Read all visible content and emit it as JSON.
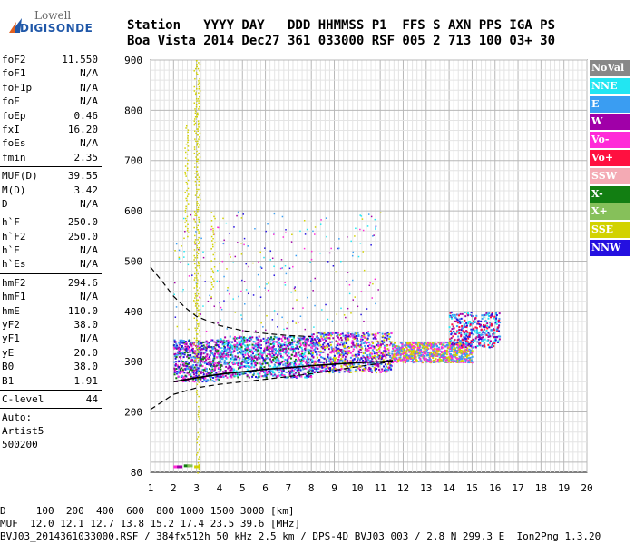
{
  "logo": {
    "line1": "Lowell",
    "line2": "DIGISONDE"
  },
  "header": {
    "line1": "Station   YYYY DAY   DDD HHMMSS P1  FFS S AXN PPS IGA PS",
    "line2": "Boa Vista 2014 Dec27 361 033000 RSF 005 2 713 100 03+ 30"
  },
  "params": {
    "g1": [
      {
        "k": "foF2",
        "v": "11.550"
      },
      {
        "k": "foF1",
        "v": "N/A"
      },
      {
        "k": "foF1p",
        "v": "N/A"
      },
      {
        "k": "foE",
        "v": "N/A"
      },
      {
        "k": "foEp",
        "v": "0.46"
      },
      {
        "k": "fxI",
        "v": "16.20"
      },
      {
        "k": "foEs",
        "v": "N/A"
      },
      {
        "k": "fmin",
        "v": "2.35"
      }
    ],
    "g2": [
      {
        "k": "MUF(D)",
        "v": "39.55"
      },
      {
        "k": "M(D)",
        "v": "3.42"
      },
      {
        "k": "D",
        "v": "N/A"
      }
    ],
    "g3": [
      {
        "k": "h`F",
        "v": "250.0"
      },
      {
        "k": "h`F2",
        "v": "250.0"
      },
      {
        "k": "h`E",
        "v": "N/A"
      },
      {
        "k": "h`Es",
        "v": "N/A"
      }
    ],
    "g4": [
      {
        "k": "hmF2",
        "v": "294.6"
      },
      {
        "k": "hmF1",
        "v": "N/A"
      },
      {
        "k": "hmE",
        "v": "110.0"
      },
      {
        "k": "yF2",
        "v": "38.0"
      },
      {
        "k": "yF1",
        "v": "N/A"
      },
      {
        "k": "yE",
        "v": "20.0"
      },
      {
        "k": "B0",
        "v": "38.0"
      },
      {
        "k": "B1",
        "v": "1.91"
      }
    ],
    "g5": [
      {
        "k": "C-level",
        "v": "44"
      }
    ],
    "auto": {
      "l1": "Auto:",
      "l2": "Artist5",
      "l3": "500200"
    }
  },
  "legend": [
    {
      "label": "NoVal",
      "color": "#888888"
    },
    {
      "label": "NNE",
      "color": "#22e6f2"
    },
    {
      "label": "E",
      "color": "#3a9df2"
    },
    {
      "label": "W",
      "color": "#a000a8"
    },
    {
      "label": "Vo-",
      "color": "#ff2ad8"
    },
    {
      "label": "Vo+",
      "color": "#ff1040"
    },
    {
      "label": "SSW",
      "color": "#f4aab4"
    },
    {
      "label": "X-",
      "color": "#127e12"
    },
    {
      "label": "X+",
      "color": "#86c05a"
    },
    {
      "label": "SSE",
      "color": "#d2d200"
    },
    {
      "label": "NNW",
      "color": "#2410e0"
    }
  ],
  "footer": {
    "line1": "D     100  200  400  600  800 1000 1500 3000 [km]",
    "line2": "MUF  12.0 12.1 12.7 13.8 15.2 17.4 23.5 39.6 [MHz]",
    "line3": "BVJ03_2014361033000.RSF / 384fx512h 50 kHz 2.5 km / DPS-4D BVJ03 003 / 2.8 N 299.3 E  Ion2Png 1.3.20"
  },
  "chart_data": {
    "type": "scatter",
    "title": "",
    "xlabel": "",
    "ylabel": "",
    "xlim": [
      1,
      20
    ],
    "ylim": [
      80,
      900
    ],
    "xticks": [
      1,
      2,
      3,
      4,
      5,
      6,
      7,
      8,
      9,
      10,
      11,
      12,
      13,
      14,
      15,
      16,
      17,
      18,
      19,
      20
    ],
    "yticks": [
      80,
      200,
      300,
      400,
      500,
      600,
      700,
      800,
      900
    ],
    "grid": true,
    "legend_position": "right",
    "series": [
      {
        "name": "NoVal",
        "color": "#888888"
      },
      {
        "name": "NNE",
        "color": "#22e6f2"
      },
      {
        "name": "E",
        "color": "#3a9df2"
      },
      {
        "name": "W",
        "color": "#a000a8"
      },
      {
        "name": "Vo-",
        "color": "#ff2ad8"
      },
      {
        "name": "Vo+",
        "color": "#ff1040"
      },
      {
        "name": "SSW",
        "color": "#f4aab4"
      },
      {
        "name": "X-",
        "color": "#127e12"
      },
      {
        "name": "X+",
        "color": "#86c05a"
      },
      {
        "name": "SSE",
        "color": "#d2d200"
      },
      {
        "name": "NNW",
        "color": "#2410e0"
      }
    ],
    "trace_bands": [
      {
        "from_f": 2.0,
        "to_f": 4.0,
        "h_low": 262,
        "h_high": 345,
        "series": [
          "Vo-",
          "W",
          "NNW",
          "E",
          "X-"
        ],
        "density": 1.0
      },
      {
        "from_f": 4.0,
        "to_f": 8.0,
        "h_low": 270,
        "h_high": 352,
        "series": [
          "Vo-",
          "W",
          "NNW",
          "E",
          "X-",
          "NNE"
        ],
        "density": 0.9
      },
      {
        "from_f": 8.0,
        "to_f": 11.5,
        "h_low": 280,
        "h_high": 360,
        "series": [
          "Vo-",
          "W",
          "E",
          "NNW",
          "SSE"
        ],
        "density": 0.8
      },
      {
        "from_f": 11.5,
        "to_f": 15.0,
        "h_low": 300,
        "h_high": 340,
        "series": [
          "SSE",
          "E",
          "Vo-"
        ],
        "density": 0.75
      },
      {
        "from_f": 14.0,
        "to_f": 16.2,
        "h_low": 330,
        "h_high": 400,
        "series": [
          "E",
          "NNE",
          "Vo+",
          "W",
          "NNW"
        ],
        "density": 0.6
      }
    ],
    "vertical_streaks": [
      {
        "f": 2.55,
        "h_from": 550,
        "h_to": 770,
        "series": "SSE"
      },
      {
        "f": 2.95,
        "h_from": 300,
        "h_to": 900,
        "series": "SSE"
      },
      {
        "f": 3.05,
        "h_from": 80,
        "h_to": 900,
        "series": "SSE"
      },
      {
        "f": 3.7,
        "h_from": 430,
        "h_to": 600,
        "series": "SSE"
      }
    ],
    "low_echoes": [
      {
        "f": 2.0,
        "h": 90,
        "series": "Vo-"
      },
      {
        "f": 2.15,
        "h": 90,
        "series": "W"
      },
      {
        "f": 2.45,
        "h": 92,
        "series": "X-"
      },
      {
        "f": 2.6,
        "h": 92,
        "series": "X+"
      },
      {
        "f": 2.9,
        "h": 90,
        "series": "SSE"
      }
    ],
    "profile_line": {
      "f": [
        2.0,
        3,
        4,
        5,
        6,
        7,
        8,
        9,
        10,
        11,
        11.55
      ],
      "h": [
        260,
        268,
        275,
        280,
        285,
        288,
        292,
        295,
        298,
        300,
        302
      ],
      "color": "#000000"
    },
    "muf_lower_dashed": {
      "f": [
        1.0,
        1.5,
        2.0,
        3,
        4,
        6,
        8,
        10,
        11.5
      ],
      "h": [
        205,
        220,
        235,
        248,
        255,
        265,
        276,
        290,
        300
      ]
    },
    "muf_upper_dashed": {
      "f": [
        1.0,
        1.5,
        2.0,
        2.5,
        3,
        4,
        5,
        6,
        7,
        8
      ],
      "h": [
        488,
        460,
        430,
        408,
        390,
        372,
        362,
        356,
        352,
        350
      ]
    }
  }
}
